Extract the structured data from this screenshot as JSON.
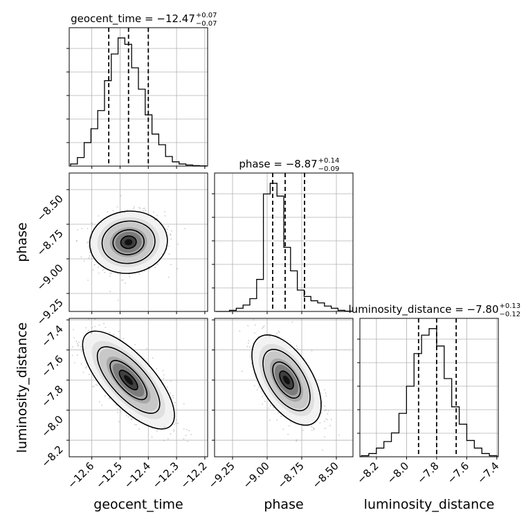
{
  "chart_data": {
    "type": "corner",
    "parameters": [
      {
        "name": "geocent_time",
        "range": [
          -12.68,
          -12.19
        ],
        "ticks": [
          -12.6,
          -12.5,
          -12.4,
          -12.3,
          -12.2
        ],
        "tick_labels": [
          "−12.6",
          "−12.5",
          "−12.4",
          "−12.3",
          "−12.2"
        ],
        "median": -12.47,
        "lower": -12.54,
        "upper": -12.4,
        "title_main": "geocent_time = −12.47",
        "title_sup": "+0.07",
        "title_sub": "−0.07",
        "hist_counts": [
          2,
          8,
          22,
          35,
          52,
          80,
          105,
          120,
          114,
          92,
          72,
          48,
          30,
          20,
          9,
          4,
          2,
          1,
          0.5,
          0.2
        ],
        "xlabel": "geocent_time"
      },
      {
        "name": "phase",
        "range": [
          -9.38,
          -8.38
        ],
        "ticks": [
          -9.25,
          -9.0,
          -8.75,
          -8.5
        ],
        "tick_labels": [
          "−9.25",
          "−9.00",
          "−8.75",
          "−8.50"
        ],
        "median": -8.87,
        "lower": -8.96,
        "upper": -8.73,
        "title_main": "phase = −8.87",
        "title_sup": "+0.14",
        "title_sub": "−0.09",
        "hist_counts": [
          0,
          0,
          1,
          3,
          6,
          12,
          30,
          110,
          120,
          108,
          60,
          38,
          20,
          14,
          10,
          8,
          5,
          3,
          1,
          0.3
        ],
        "xlabel": "phase",
        "ylabel": "phase"
      },
      {
        "name": "luminosity_distance",
        "range": [
          -8.31,
          -7.39
        ],
        "ticks": [
          -8.2,
          -8.0,
          -7.8,
          -7.6,
          -7.4
        ],
        "tick_labels": [
          "−8.2",
          "−8.0",
          "−7.8",
          "−7.6",
          "−7.4"
        ],
        "median": -7.8,
        "lower": -7.92,
        "upper": -7.67,
        "title_main": "luminosity_distance = −7.80",
        "title_sup": "+0.13",
        "title_sub": "−0.12",
        "hist_counts": [
          1,
          3,
          8,
          14,
          22,
          40,
          65,
          95,
          112,
          118,
          102,
          72,
          46,
          30,
          15,
          8,
          3,
          1
        ],
        "xlabel": "luminosity_distance",
        "ylabel": "luminosity_distance"
      }
    ],
    "grid": true
  }
}
